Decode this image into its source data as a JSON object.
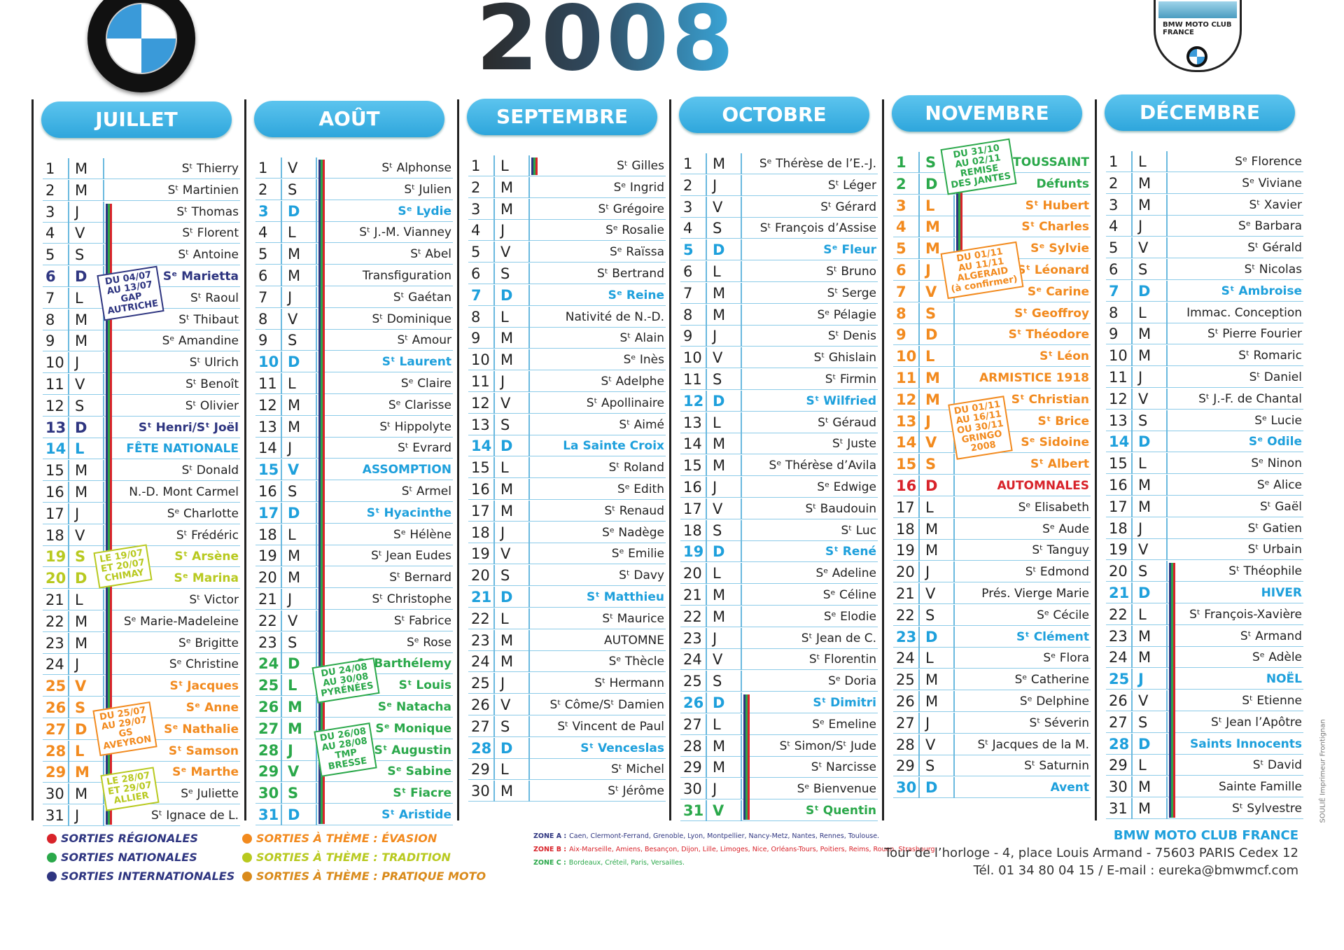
{
  "header": {
    "year": "2008",
    "badge": "BMW MOTO CLUB FRANCE"
  },
  "months": [
    {
      "name": "JUILLET",
      "days": [
        [
          1,
          "M",
          "Sᵗ Thierry"
        ],
        [
          2,
          "M",
          "Sᵗ Martinien"
        ],
        [
          3,
          "J",
          "Sᵗ Thomas"
        ],
        [
          4,
          "V",
          "Sᵗ Florent"
        ],
        [
          5,
          "S",
          "Sᵗ Antoine"
        ],
        [
          6,
          "D",
          "Sᵉ Marietta",
          "#2e3580"
        ],
        [
          7,
          "L",
          "Sᵗ Raoul"
        ],
        [
          8,
          "M",
          "Sᵗ Thibaut"
        ],
        [
          9,
          "M",
          "Sᵉ Amandine"
        ],
        [
          10,
          "J",
          "Sᵗ Ulrich"
        ],
        [
          11,
          "V",
          "Sᵗ Benoît"
        ],
        [
          12,
          "S",
          "Sᵗ Olivier"
        ],
        [
          13,
          "D",
          "Sᵗ Henri/Sᵗ Joël",
          "#2e3580"
        ],
        [
          14,
          "L",
          "FÊTE NATIONALE",
          "#1ea0dc"
        ],
        [
          15,
          "M",
          "Sᵗ Donald"
        ],
        [
          16,
          "M",
          "N.-D. Mont Carmel"
        ],
        [
          17,
          "J",
          "Sᵉ Charlotte"
        ],
        [
          18,
          "V",
          "Sᵗ Frédéric"
        ],
        [
          19,
          "S",
          "Sᵗ Arsène",
          "#b8c91f"
        ],
        [
          20,
          "D",
          "Sᵉ Marina",
          "#b8c91f"
        ],
        [
          21,
          "L",
          "Sᵗ Victor"
        ],
        [
          22,
          "M",
          "Sᵉ Marie-Madeleine"
        ],
        [
          23,
          "M",
          "Sᵉ Brigitte"
        ],
        [
          24,
          "J",
          "Sᵉ Christine"
        ],
        [
          25,
          "V",
          "Sᵗ Jacques",
          "#f28a1e"
        ],
        [
          26,
          "S",
          "Sᵉ Anne",
          "#f28a1e"
        ],
        [
          27,
          "D",
          "Sᵉ Nathalie",
          "#f28a1e"
        ],
        [
          28,
          "L",
          "Sᵗ Samson",
          "#f28a1e"
        ],
        [
          29,
          "M",
          "Sᵉ Marthe",
          "#f28a1e"
        ],
        [
          30,
          "M",
          "Sᵉ Juliette"
        ],
        [
          31,
          "J",
          "Sᵗ Ignace de L."
        ]
      ],
      "notes": [
        {
          "lines": [
            "DU 04/07",
            "AU 13/07",
            "GAP",
            "AUTRICHE"
          ],
          "color": "#2e3580"
        },
        {
          "lines": [
            "LE 19/07",
            "ET 20/07",
            "CHIMAY"
          ],
          "color": "#b8c91f"
        },
        {
          "lines": [
            "DU 25/07",
            "AU 29/07",
            "GS",
            "AVEYRON"
          ],
          "color": "#f28a1e"
        },
        {
          "lines": [
            "LE 28/07",
            "ET 29/07",
            "ALLIER"
          ],
          "color": "#b8c91f"
        }
      ]
    },
    {
      "name": "AOÛT",
      "days": [
        [
          1,
          "V",
          "Sᵗ Alphonse"
        ],
        [
          2,
          "S",
          "Sᵗ Julien"
        ],
        [
          3,
          "D",
          "Sᵉ Lydie",
          "#1ea0dc"
        ],
        [
          4,
          "L",
          "Sᵗ J.-M. Vianney"
        ],
        [
          5,
          "M",
          "Sᵗ Abel"
        ],
        [
          6,
          "M",
          "Transfiguration"
        ],
        [
          7,
          "J",
          "Sᵗ Gaétan"
        ],
        [
          8,
          "V",
          "Sᵗ Dominique"
        ],
        [
          9,
          "S",
          "Sᵗ Amour"
        ],
        [
          10,
          "D",
          "Sᵗ Laurent",
          "#1ea0dc"
        ],
        [
          11,
          "L",
          "Sᵉ Claire"
        ],
        [
          12,
          "M",
          "Sᵉ Clarisse"
        ],
        [
          13,
          "M",
          "Sᵗ Hippolyte"
        ],
        [
          14,
          "J",
          "Sᵗ Evrard"
        ],
        [
          15,
          "V",
          "ASSOMPTION",
          "#1ea0dc"
        ],
        [
          16,
          "S",
          "Sᵗ Armel"
        ],
        [
          17,
          "D",
          "Sᵗ Hyacinthe",
          "#1ea0dc"
        ],
        [
          18,
          "L",
          "Sᵉ Hélène"
        ],
        [
          19,
          "M",
          "Sᵗ Jean Eudes"
        ],
        [
          20,
          "M",
          "Sᵗ Bernard"
        ],
        [
          21,
          "J",
          "Sᵗ Christophe"
        ],
        [
          22,
          "V",
          "Sᵗ Fabrice"
        ],
        [
          23,
          "S",
          "Sᵉ Rose"
        ],
        [
          24,
          "D",
          "Sᵗ Barthélemy",
          "#2aa84a"
        ],
        [
          25,
          "L",
          "Sᵗ Louis",
          "#2aa84a"
        ],
        [
          26,
          "M",
          "Sᵉ Natacha",
          "#2aa84a"
        ],
        [
          27,
          "M",
          "Sᵉ Monique",
          "#2aa84a"
        ],
        [
          28,
          "J",
          "Sᵗ Augustin",
          "#2aa84a"
        ],
        [
          29,
          "V",
          "Sᵉ Sabine",
          "#2aa84a"
        ],
        [
          30,
          "S",
          "Sᵗ Fiacre",
          "#2aa84a"
        ],
        [
          31,
          "D",
          "Sᵗ Aristide",
          "#1ea0dc"
        ]
      ],
      "notes": [
        {
          "lines": [
            "DU 24/08",
            "AU 30/08",
            "PYRÉNÉES"
          ],
          "color": "#2aa84a"
        },
        {
          "lines": [
            "DU 26/08",
            "AU 28/08",
            "TMP",
            "BRESSE"
          ],
          "color": "#2aa84a"
        }
      ]
    },
    {
      "name": "SEPTEMBRE",
      "days": [
        [
          1,
          "L",
          "Sᵗ Gilles"
        ],
        [
          2,
          "M",
          "Sᵉ Ingrid"
        ],
        [
          3,
          "M",
          "Sᵗ Grégoire"
        ],
        [
          4,
          "J",
          "Sᵉ Rosalie"
        ],
        [
          5,
          "V",
          "Sᵉ Raïssa"
        ],
        [
          6,
          "S",
          "Sᵗ Bertrand"
        ],
        [
          7,
          "D",
          "Sᵉ Reine",
          "#1ea0dc"
        ],
        [
          8,
          "L",
          "Nativité de N.-D."
        ],
        [
          9,
          "M",
          "Sᵗ Alain"
        ],
        [
          10,
          "M",
          "Sᵉ Inès"
        ],
        [
          11,
          "J",
          "Sᵗ Adelphe"
        ],
        [
          12,
          "V",
          "Sᵗ Apollinaire"
        ],
        [
          13,
          "S",
          "Sᵗ Aimé"
        ],
        [
          14,
          "D",
          "La Sainte Croix",
          "#1ea0dc"
        ],
        [
          15,
          "L",
          "Sᵗ Roland"
        ],
        [
          16,
          "M",
          "Sᵉ Edith"
        ],
        [
          17,
          "M",
          "Sᵗ Renaud"
        ],
        [
          18,
          "J",
          "Sᵉ Nadège"
        ],
        [
          19,
          "V",
          "Sᵉ Emilie"
        ],
        [
          20,
          "S",
          "Sᵗ Davy"
        ],
        [
          21,
          "D",
          "Sᵗ Matthieu",
          "#1ea0dc"
        ],
        [
          22,
          "L",
          "Sᵗ Maurice"
        ],
        [
          23,
          "M",
          "AUTOMNE"
        ],
        [
          24,
          "M",
          "Sᵉ Thècle"
        ],
        [
          25,
          "J",
          "Sᵗ Hermann"
        ],
        [
          26,
          "V",
          "Sᵗ Côme/Sᵗ Damien"
        ],
        [
          27,
          "S",
          "Sᵗ Vincent de Paul"
        ],
        [
          28,
          "D",
          "Sᵗ Venceslas",
          "#1ea0dc"
        ],
        [
          29,
          "L",
          "Sᵗ Michel"
        ],
        [
          30,
          "M",
          "Sᵗ Jérôme"
        ]
      ]
    },
    {
      "name": "OCTOBRE",
      "days": [
        [
          1,
          "M",
          "Sᵉ Thérèse de l’E.-J."
        ],
        [
          2,
          "J",
          "Sᵗ Léger"
        ],
        [
          3,
          "V",
          "Sᵗ Gérard"
        ],
        [
          4,
          "S",
          "Sᵗ François d’Assise"
        ],
        [
          5,
          "D",
          "Sᵉ Fleur",
          "#1ea0dc"
        ],
        [
          6,
          "L",
          "Sᵗ Bruno"
        ],
        [
          7,
          "M",
          "Sᵗ Serge"
        ],
        [
          8,
          "M",
          "Sᵉ Pélagie"
        ],
        [
          9,
          "J",
          "Sᵗ Denis"
        ],
        [
          10,
          "V",
          "Sᵗ Ghislain"
        ],
        [
          11,
          "S",
          "Sᵗ Firmin"
        ],
        [
          12,
          "D",
          "Sᵗ Wilfried",
          "#1ea0dc"
        ],
        [
          13,
          "L",
          "Sᵗ Géraud"
        ],
        [
          14,
          "M",
          "Sᵗ Juste"
        ],
        [
          15,
          "M",
          "Sᵉ Thérèse d’Avila"
        ],
        [
          16,
          "J",
          "Sᵉ Edwige"
        ],
        [
          17,
          "V",
          "Sᵗ Baudouin"
        ],
        [
          18,
          "S",
          "Sᵗ Luc"
        ],
        [
          19,
          "D",
          "Sᵗ René",
          "#1ea0dc"
        ],
        [
          20,
          "L",
          "Sᵉ Adeline"
        ],
        [
          21,
          "M",
          "Sᵉ Céline"
        ],
        [
          22,
          "M",
          "Sᵉ Elodie"
        ],
        [
          23,
          "J",
          "Sᵗ Jean de C."
        ],
        [
          24,
          "V",
          "Sᵗ Florentin"
        ],
        [
          25,
          "S",
          "Sᵉ Doria"
        ],
        [
          26,
          "D",
          "Sᵗ Dimitri",
          "#1ea0dc"
        ],
        [
          27,
          "L",
          "Sᵉ Emeline"
        ],
        [
          28,
          "M",
          "Sᵗ Simon/Sᵗ Jude"
        ],
        [
          29,
          "M",
          "Sᵗ Narcisse"
        ],
        [
          30,
          "J",
          "Sᵉ Bienvenue"
        ],
        [
          31,
          "V",
          "Sᵗ Quentin",
          "#2aa84a"
        ]
      ]
    },
    {
      "name": "NOVEMBRE",
      "days": [
        [
          1,
          "S",
          "TOUSSAINT",
          "#2aa84a"
        ],
        [
          2,
          "D",
          "Défunts",
          "#2aa84a"
        ],
        [
          3,
          "L",
          "Sᵗ Hubert",
          "#f28a1e"
        ],
        [
          4,
          "M",
          "Sᵗ Charles",
          "#f28a1e"
        ],
        [
          5,
          "M",
          "Sᵉ Sylvie",
          "#f28a1e"
        ],
        [
          6,
          "J",
          "Sᵗ Léonard",
          "#f28a1e"
        ],
        [
          7,
          "V",
          "Sᵉ Carine",
          "#f28a1e"
        ],
        [
          8,
          "S",
          "Sᵗ Geoffroy",
          "#f28a1e"
        ],
        [
          9,
          "D",
          "Sᵗ Théodore",
          "#f28a1e"
        ],
        [
          10,
          "L",
          "Sᵗ Léon",
          "#f28a1e"
        ],
        [
          11,
          "M",
          "ARMISTICE 1918",
          "#f28a1e"
        ],
        [
          12,
          "M",
          "Sᵗ Christian",
          "#f28a1e"
        ],
        [
          13,
          "J",
          "Sᵗ Brice",
          "#f28a1e"
        ],
        [
          14,
          "V",
          "Sᵉ Sidoine",
          "#f28a1e"
        ],
        [
          15,
          "S",
          "Sᵗ Albert",
          "#f28a1e"
        ],
        [
          16,
          "D",
          "AUTOMNALES",
          "#d8232a"
        ],
        [
          17,
          "L",
          "Sᵉ Elisabeth"
        ],
        [
          18,
          "M",
          "Sᵉ Aude"
        ],
        [
          19,
          "M",
          "Sᵗ Tanguy"
        ],
        [
          20,
          "J",
          "Sᵗ Edmond"
        ],
        [
          21,
          "V",
          "Prés. Vierge Marie"
        ],
        [
          22,
          "S",
          "Sᵉ Cécile"
        ],
        [
          23,
          "D",
          "Sᵗ Clément",
          "#1ea0dc"
        ],
        [
          24,
          "L",
          "Sᵉ Flora"
        ],
        [
          25,
          "M",
          "Sᵉ Catherine"
        ],
        [
          26,
          "M",
          "Sᵉ Delphine"
        ],
        [
          27,
          "J",
          "Sᵗ Séverin"
        ],
        [
          28,
          "V",
          "Sᵗ Jacques de la M."
        ],
        [
          29,
          "S",
          "Sᵗ Saturnin"
        ],
        [
          30,
          "D",
          "Avent",
          "#1ea0dc"
        ]
      ],
      "notes": [
        {
          "lines": [
            "DU 31/10",
            "AU 02/11",
            "REMISE",
            "DES JANTES"
          ],
          "color": "#2aa84a"
        },
        {
          "lines": [
            "DU 01/11",
            "AU 11/11",
            "ALGERAID",
            "(à confirmer)"
          ],
          "color": "#f28a1e"
        },
        {
          "lines": [
            "DU 01/11",
            "AU 16/11",
            "OU 30/11",
            "GRINGO",
            "2008"
          ],
          "color": "#f28a1e"
        }
      ]
    },
    {
      "name": "DÉCEMBRE",
      "days": [
        [
          1,
          "L",
          "Sᵉ Florence"
        ],
        [
          2,
          "M",
          "Sᵉ Viviane"
        ],
        [
          3,
          "M",
          "Sᵗ Xavier"
        ],
        [
          4,
          "J",
          "Sᵉ Barbara"
        ],
        [
          5,
          "V",
          "Sᵗ Gérald"
        ],
        [
          6,
          "S",
          "Sᵗ Nicolas"
        ],
        [
          7,
          "D",
          "Sᵗ Ambroise",
          "#1ea0dc"
        ],
        [
          8,
          "L",
          "Immac. Conception"
        ],
        [
          9,
          "M",
          "Sᵗ Pierre Fourier"
        ],
        [
          10,
          "M",
          "Sᵗ Romaric"
        ],
        [
          11,
          "J",
          "Sᵗ Daniel"
        ],
        [
          12,
          "V",
          "Sᵗ J.-F. de Chantal"
        ],
        [
          13,
          "S",
          "Sᵉ Lucie"
        ],
        [
          14,
          "D",
          "Sᵉ Odile",
          "#1ea0dc"
        ],
        [
          15,
          "L",
          "Sᵉ Ninon"
        ],
        [
          16,
          "M",
          "Sᵉ Alice"
        ],
        [
          17,
          "M",
          "Sᵗ Gaël"
        ],
        [
          18,
          "J",
          "Sᵗ Gatien"
        ],
        [
          19,
          "V",
          "Sᵗ Urbain"
        ],
        [
          20,
          "S",
          "Sᵗ Théophile"
        ],
        [
          21,
          "D",
          "HIVER",
          "#1ea0dc"
        ],
        [
          22,
          "L",
          "Sᵗ François-Xavière"
        ],
        [
          23,
          "M",
          "Sᵗ Armand"
        ],
        [
          24,
          "M",
          "Sᵉ Adèle"
        ],
        [
          25,
          "J",
          "NOËL",
          "#1ea0dc"
        ],
        [
          26,
          "V",
          "Sᵗ Etienne"
        ],
        [
          27,
          "S",
          "Sᵗ Jean l’Apôtre"
        ],
        [
          28,
          "D",
          "Saints Innocents",
          "#1ea0dc"
        ],
        [
          29,
          "L",
          "Sᵗ David"
        ],
        [
          30,
          "M",
          "Sainte Famille"
        ],
        [
          31,
          "M",
          "Sᵗ Sylvestre"
        ]
      ]
    }
  ],
  "legend": [
    {
      "label": "SORTIES RÉGIONALES",
      "color": "#d8232a"
    },
    {
      "label": "SORTIES NATIONALES",
      "color": "#2aa84a"
    },
    {
      "label": "SORTIES INTERNATIONALES",
      "color": "#2e3580"
    },
    {
      "label": "SORTIES À THÈME : ÉVASION",
      "color": "#f28a1e"
    },
    {
      "label": "SORTIES À THÈME : TRADITION",
      "color": "#b8c91f"
    },
    {
      "label": "SORTIES À THÈME : PRATIQUE MOTO",
      "color": "#d98a1a"
    }
  ],
  "zones": [
    {
      "label": "ZONE A :",
      "text": "Caen, Clermont-Ferrand, Grenoble, Lyon, Montpellier, Nancy-Metz, Nantes, Rennes, Toulouse.",
      "color": "#2e3580"
    },
    {
      "label": "ZONE B :",
      "text": "Aix-Marseille, Amiens, Besançon, Dijon, Lille, Limoges, Nice, Orléans-Tours, Poitiers, Reims, Rouen, Strasbourg.",
      "color": "#d8232a"
    },
    {
      "label": "ZONE C :",
      "text": "Bordeaux, Créteil, Paris, Versailles.",
      "color": "#2aa84a"
    }
  ],
  "footer": {
    "club": "BMW MOTO CLUB FRANCE",
    "address": "Tour de l’horloge - 4, place Louis Armand - 75603 PARIS Cedex 12",
    "contact": "Tél. 01 34 80 04 15 / E-mail : eureka@bmwmcf.com",
    "printer": "SOULIÉ Imprimeur Frontignan"
  }
}
